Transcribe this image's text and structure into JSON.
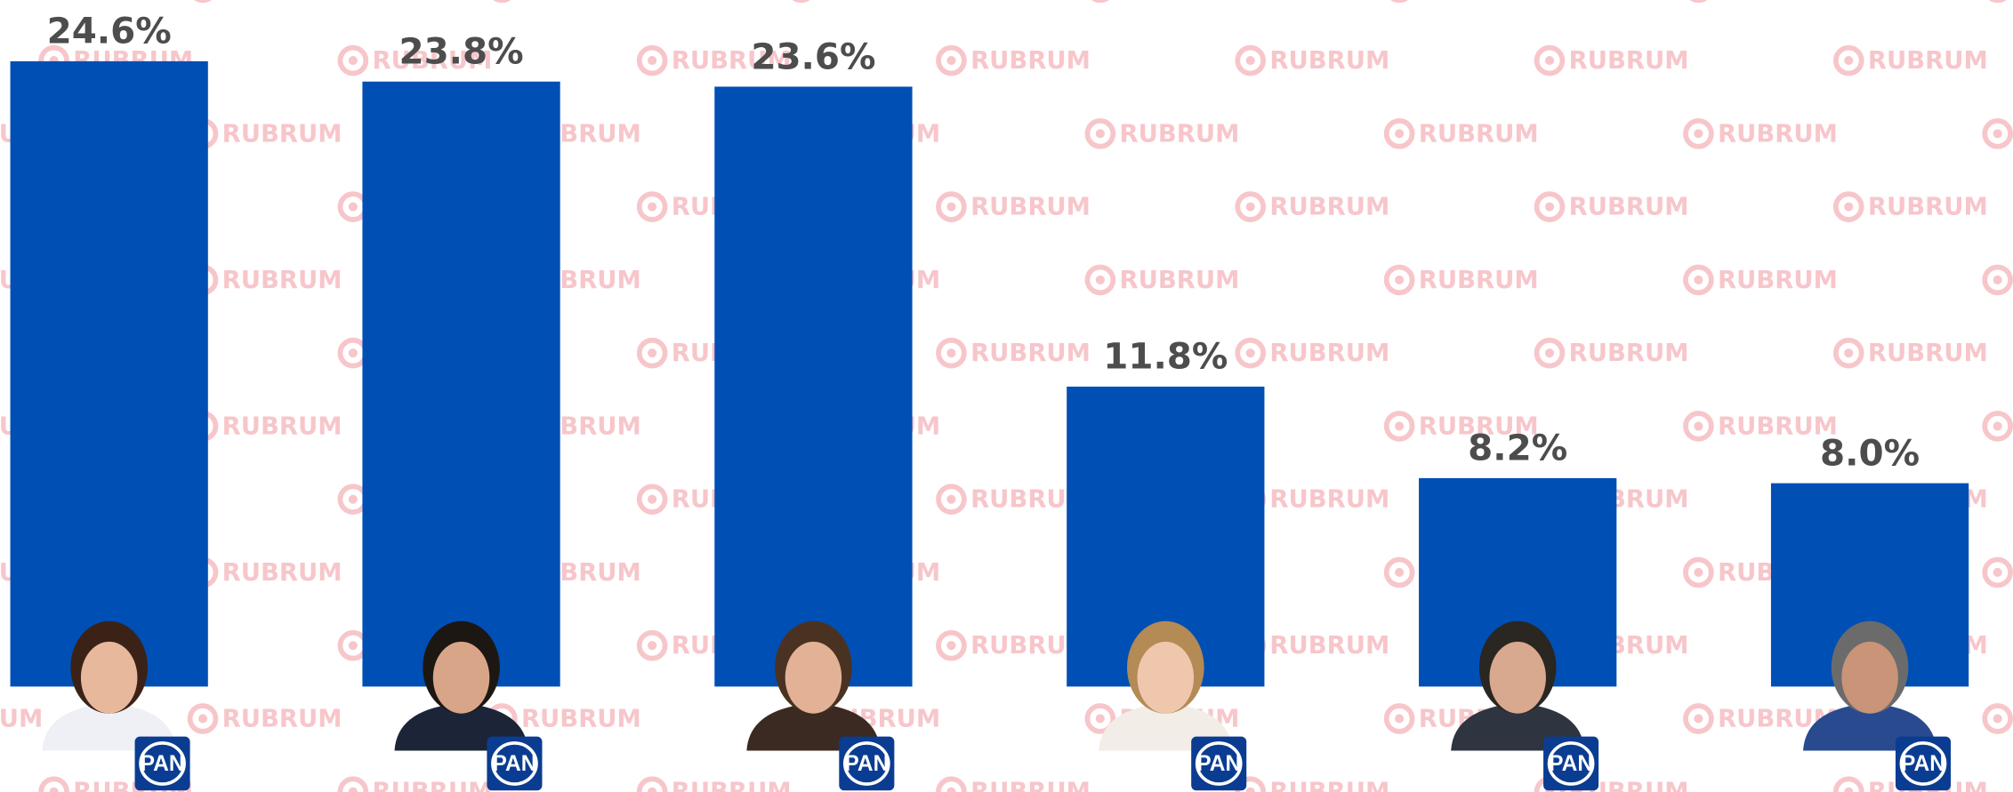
{
  "watermark": "RUBRUM",
  "chart_data": {
    "type": "bar",
    "categories": [
      null,
      null,
      null,
      null,
      null,
      null
    ],
    "values": [
      24.6,
      23.8,
      23.6,
      11.8,
      8.2,
      8.0
    ],
    "value_labels": [
      "24.6%",
      "23.8%",
      "23.6%",
      "11.8%",
      "8.2%",
      "8.0%"
    ],
    "color": "#004fb5",
    "ylim": [
      0,
      27
    ],
    "logo": "PAN"
  }
}
